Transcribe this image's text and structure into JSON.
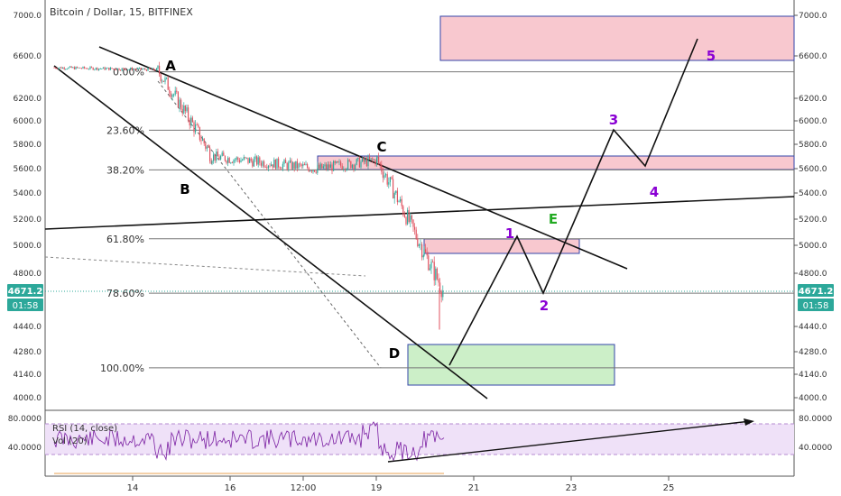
{
  "header": {
    "title": "Bitcoin / Dollar, 15, BITFINEX"
  },
  "price_axis": {
    "ticks": [
      "7000.0",
      "6600.0",
      "6200.0",
      "6000.0",
      "5800.0",
      "5600.0",
      "5400.0",
      "5200.0",
      "5000.0",
      "4800.0",
      "4440.0",
      "4280.0",
      "4140.0",
      "4000.0"
    ],
    "tick_values": [
      7000,
      6600,
      6200,
      6000,
      5800,
      5600,
      5400,
      5200,
      5000,
      4800,
      4440,
      4280,
      4140,
      4000
    ],
    "last_price": "4671.2",
    "countdown": "01:58"
  },
  "time_axis": {
    "ticks": [
      "14",
      "16",
      "12:00",
      "19",
      "21",
      "23",
      "25"
    ],
    "tick_index": [
      0.0,
      2.0,
      3.5,
      5.0,
      7.0,
      9.0,
      11.0
    ]
  },
  "fibonacci": [
    {
      "label": "0.00%",
      "price": 6450
    },
    {
      "label": "23.60%",
      "price": 5920
    },
    {
      "label": "38.20%",
      "price": 5590
    },
    {
      "label": "61.80%",
      "price": 5050
    },
    {
      "label": "78.60%",
      "price": 4665
    },
    {
      "label": "100.00%",
      "price": 4180
    }
  ],
  "wave_labels": [
    {
      "text": "A",
      "color": "#000000",
      "x": 0.8,
      "price": 6480
    },
    {
      "text": "B",
      "color": "#000000",
      "x": 1.2,
      "price": 5430
    },
    {
      "text": "C",
      "color": "#000000",
      "x": 5.2,
      "price": 5690
    },
    {
      "text": "D",
      "color": "#000000",
      "x": 5.4,
      "price": 4250
    },
    {
      "text": "E",
      "color": "#22aa22",
      "x": 8.8,
      "price": 5200
    },
    {
      "text": "1",
      "color": "#8a00d4",
      "x": 7.9,
      "price": 5090
    },
    {
      "text": "2",
      "color": "#8a00d4",
      "x": 8.3,
      "price": 4590
    },
    {
      "text": "3",
      "color": "#8a00d4",
      "x": 9.95,
      "price": 5980
    },
    {
      "text": "4",
      "color": "#8a00d4",
      "x": 10.85,
      "price": 5420
    },
    {
      "text": "5",
      "color": "#8a00d4",
      "x": 11.9,
      "price": 6590
    }
  ],
  "rsi": {
    "label": "RSI (14, close)",
    "label2": "Vol (20)",
    "ticks": [
      "80.0000",
      "40.0000"
    ],
    "tick_values": [
      80,
      40
    ]
  },
  "chart_data": {
    "type": "line",
    "series": [
      {
        "values": [
          6500,
          6480,
          6460,
          6400,
          6150,
          5950,
          5800,
          5700,
          5650,
          5600,
          5560,
          5600,
          5640,
          5600,
          5580,
          5620,
          5680,
          5600,
          5580,
          5600,
          5700,
          5660,
          5550,
          5400,
          5250,
          5100,
          4950,
          4850,
          4700,
          4600,
          4480,
          4671
        ]
      }
    ],
    "x_index_range": [
      -1.6,
      13.2
    ],
    "price_range": [
      3950,
      7050
    ],
    "grid": false,
    "colors": {
      "candle_up": "#2ca89a",
      "candle_down": "#e0525f",
      "zone_red": "#f8c8cf",
      "zone_green": "#ccefc8",
      "zone_border": "#3344aa",
      "rsi_fill": "#efe1f8",
      "rsi_line": "#7a1fa2",
      "fib_line": "#777777",
      "last_price": "#2ca89a"
    }
  }
}
